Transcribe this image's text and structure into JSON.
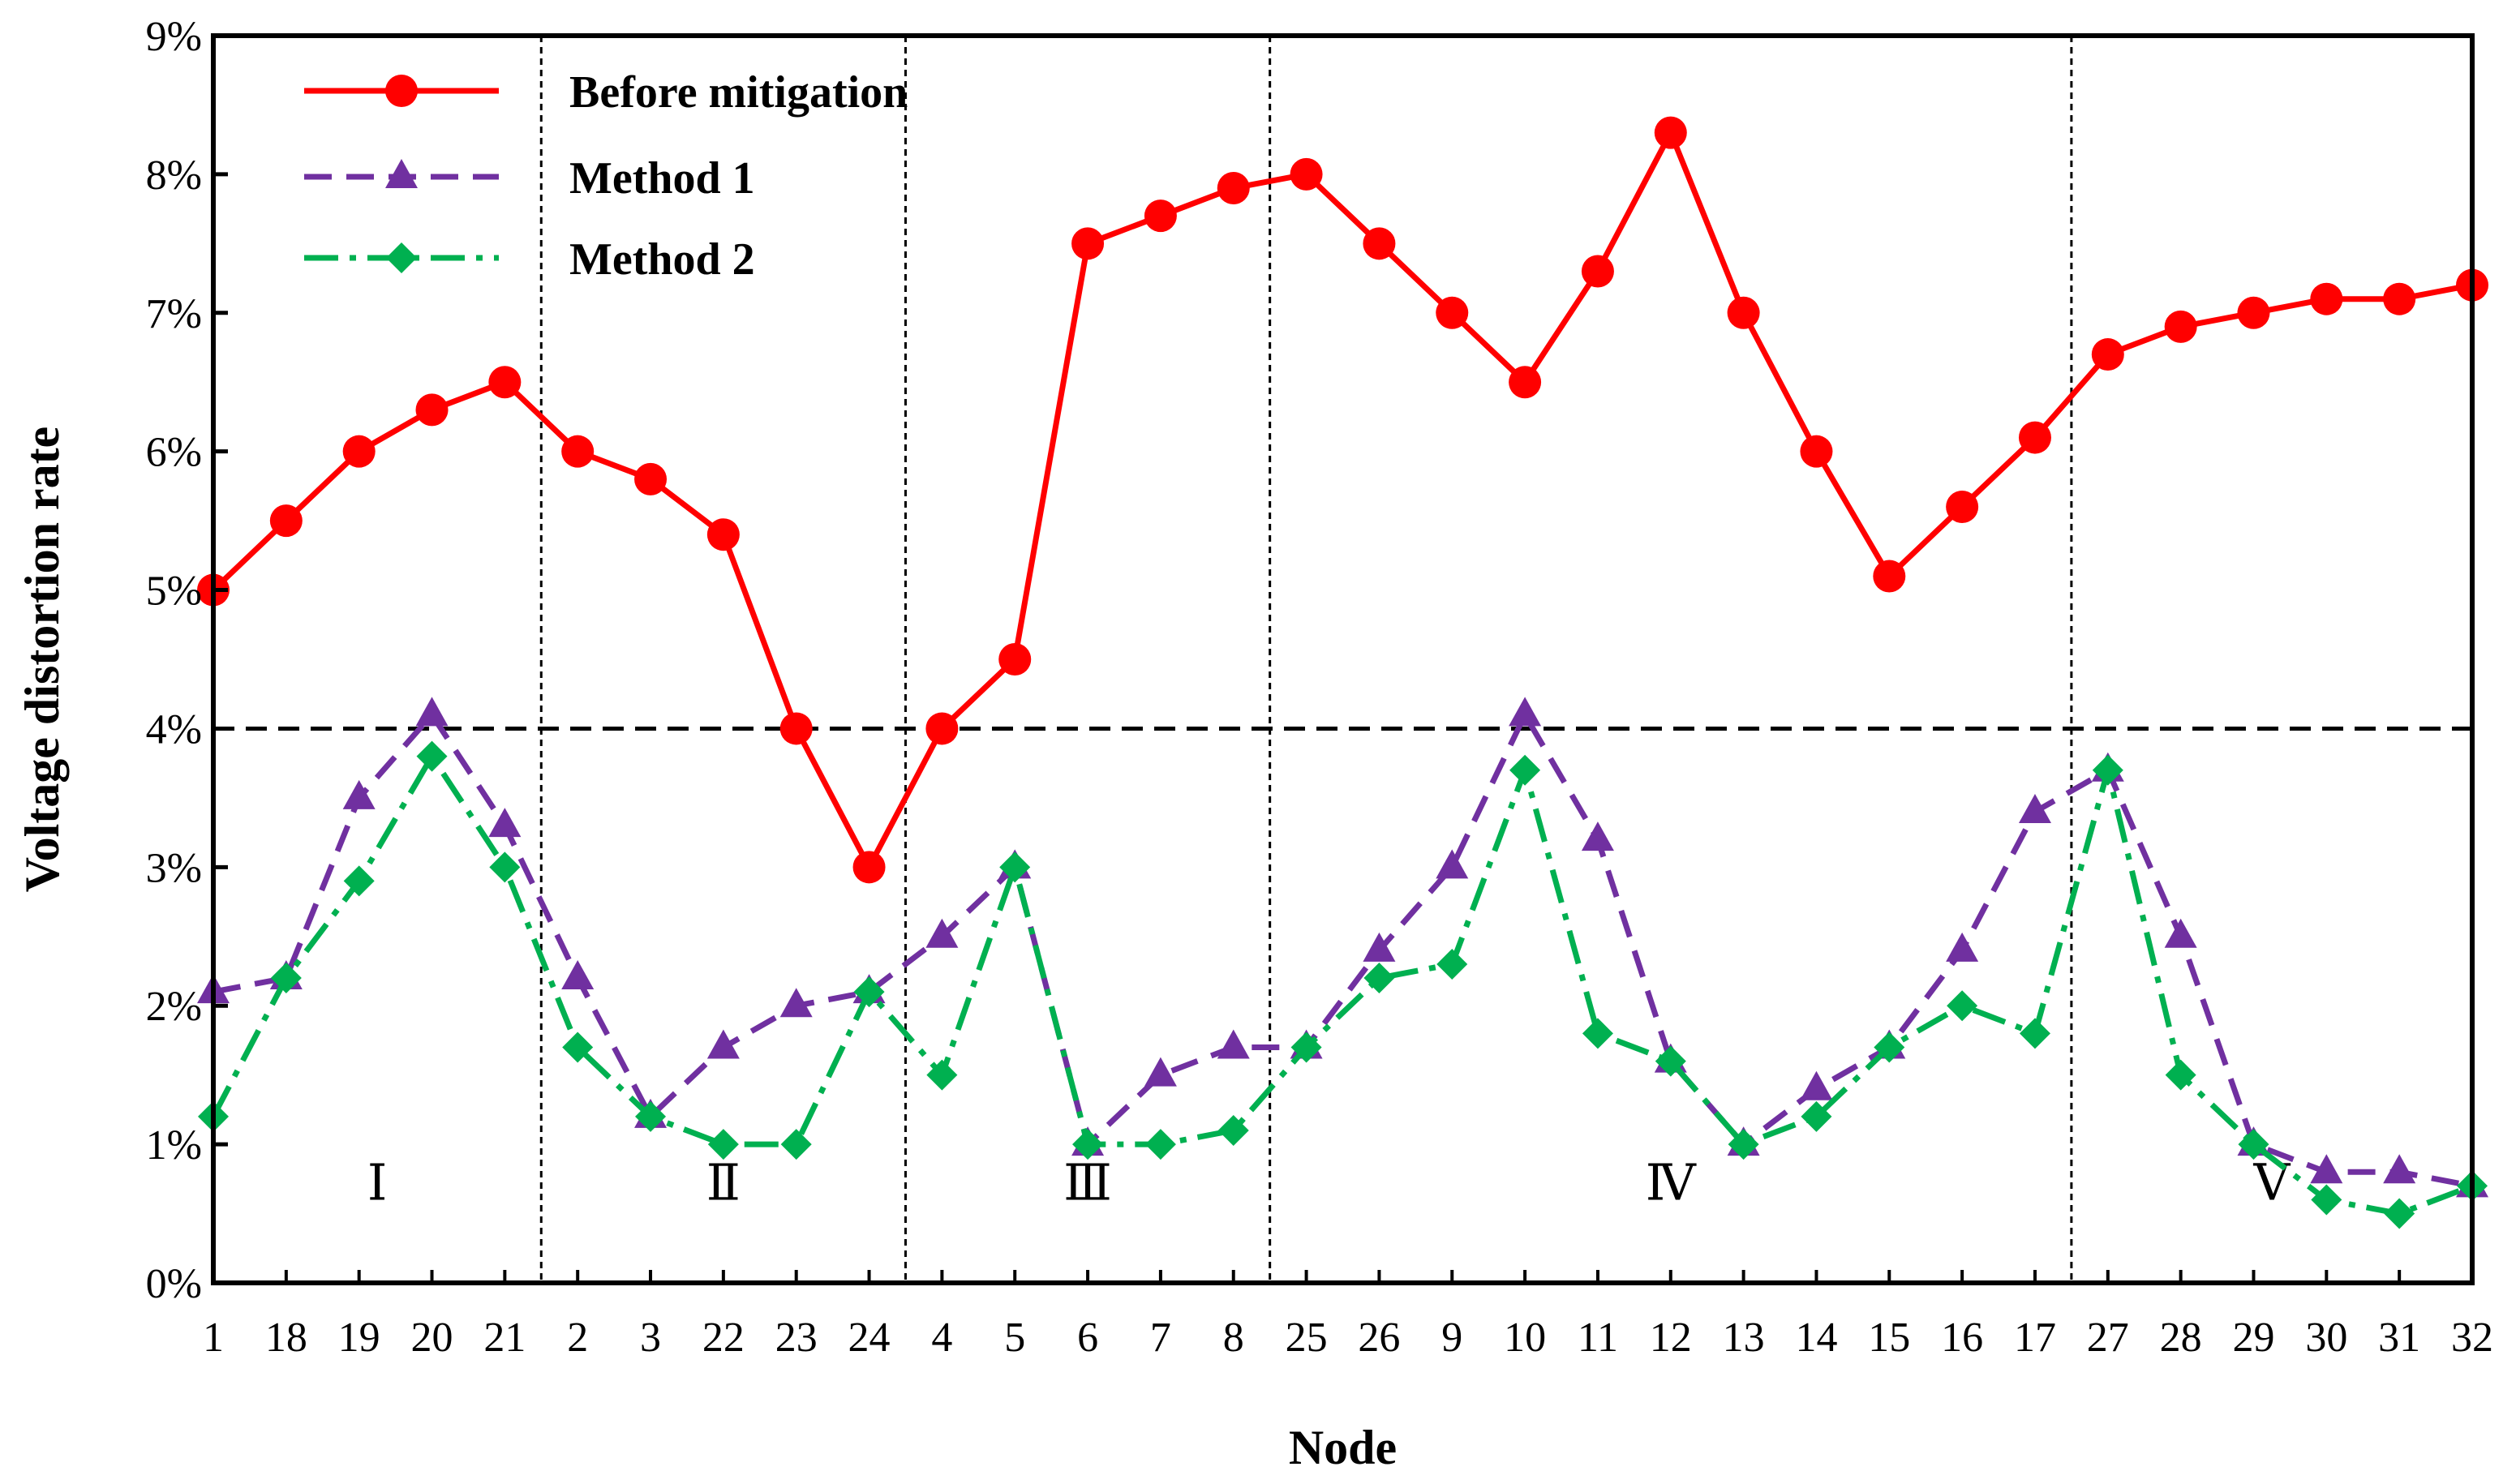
{
  "chart_data": {
    "type": "line",
    "xlabel": "Node",
    "ylabel": "Voltage distortion rate",
    "ylim": [
      0,
      9
    ],
    "y_ticks": [
      "0%",
      "1%",
      "2%",
      "3%",
      "4%",
      "5%",
      "6%",
      "7%",
      "8%",
      "9%"
    ],
    "categories": [
      "1",
      "18",
      "19",
      "20",
      "21",
      "2",
      "3",
      "22",
      "23",
      "24",
      "4",
      "5",
      "6",
      "7",
      "8",
      "25",
      "26",
      "9",
      "10",
      "11",
      "12",
      "13",
      "14",
      "15",
      "16",
      "17",
      "27",
      "28",
      "29",
      "30",
      "31",
      "32"
    ],
    "limit_line": 4,
    "series": [
      {
        "name": "Before mitigation",
        "color": "#ff0000",
        "marker": "circle",
        "line_style": "solid",
        "values": [
          5.0,
          5.5,
          6.0,
          6.3,
          6.5,
          6.0,
          5.8,
          5.4,
          4.0,
          3.0,
          4.0,
          4.5,
          7.5,
          7.7,
          7.9,
          8.0,
          7.5,
          7.0,
          6.5,
          7.3,
          8.3,
          7.0,
          6.0,
          5.1,
          5.6,
          6.1,
          6.7,
          6.9,
          7.0,
          7.1,
          7.1,
          7.2
        ]
      },
      {
        "name": "Method 1",
        "color": "#7030a0",
        "marker": "triangle",
        "line_style": "dashed",
        "values": [
          2.1,
          2.2,
          3.5,
          4.1,
          3.3,
          2.2,
          1.2,
          1.7,
          2.0,
          2.1,
          2.5,
          3.0,
          1.0,
          1.5,
          1.7,
          1.7,
          2.4,
          3.0,
          4.1,
          3.2,
          1.6,
          1.0,
          1.4,
          1.7,
          2.4,
          3.4,
          3.7,
          2.5,
          1.0,
          0.8,
          0.8,
          0.7
        ]
      },
      {
        "name": "Method 2",
        "color": "#00b050",
        "marker": "diamond",
        "line_style": "dashdot",
        "values": [
          1.2,
          2.2,
          2.9,
          3.8,
          3.0,
          1.7,
          1.2,
          1.0,
          1.0,
          2.1,
          1.5,
          3.0,
          1.0,
          1.0,
          1.1,
          1.7,
          2.2,
          2.3,
          3.7,
          1.8,
          1.6,
          1.0,
          1.2,
          1.7,
          2.0,
          1.8,
          3.7,
          1.5,
          1.0,
          0.6,
          0.5,
          0.7
        ]
      }
    ],
    "regions": [
      {
        "label": "Ⅰ",
        "nodes": [
          "1",
          "18",
          "19",
          "20",
          "21"
        ]
      },
      {
        "label": "Ⅱ",
        "nodes": [
          "2",
          "3",
          "22",
          "23",
          "24"
        ]
      },
      {
        "label": "Ⅲ",
        "nodes": [
          "4",
          "5",
          "6",
          "7",
          "8"
        ]
      },
      {
        "label": "Ⅳ",
        "nodes": [
          "25",
          "26",
          "9",
          "10",
          "11",
          "12",
          "13",
          "14",
          "15",
          "16",
          "17"
        ]
      },
      {
        "label": "Ⅴ",
        "nodes": [
          "27",
          "28",
          "29",
          "30",
          "31",
          "32"
        ]
      }
    ],
    "legend": {
      "placement": "top-left",
      "entries": [
        "Before mitigation",
        "Method 1",
        "Method 2"
      ]
    },
    "grid": false
  }
}
